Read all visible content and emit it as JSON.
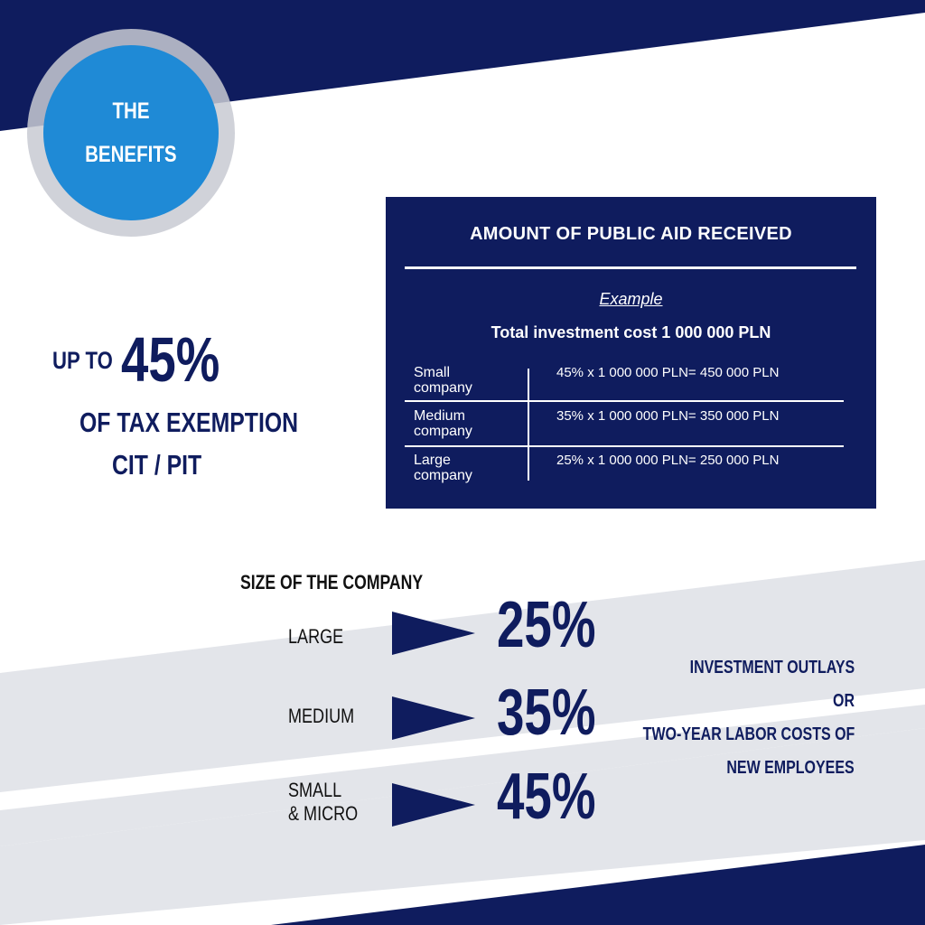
{
  "badge": {
    "line1": "THE",
    "line2": "BENEFITS"
  },
  "headline": {
    "prefix": "UP TO",
    "value": "45%",
    "line2": "OF TAX EXEMPTION",
    "line3": "CIT / PIT"
  },
  "aid_panel": {
    "title": "AMOUNT OF PUBLIC AID RECEIVED",
    "example_label": "Example",
    "total": "Total investment cost 1 000 000 PLN",
    "rows": [
      {
        "label1": "Small",
        "label2": "company",
        "calc": "45% x 1 000 000 PLN= 450 000 PLN"
      },
      {
        "label1": "Medium",
        "label2": "company",
        "calc": "35% x 1 000 000 PLN= 350 000 PLN"
      },
      {
        "label1": "Large",
        "label2": "company",
        "calc": "25% x 1 000 000 PLN= 250 000 PLN"
      }
    ]
  },
  "sizes": {
    "title": "SIZE OF THE COMPANY",
    "large": {
      "label": "LARGE",
      "value": "25%"
    },
    "medium": {
      "label": "MEDIUM",
      "value": "35%"
    },
    "small": {
      "label1": "SMALL",
      "label2": "& MICRO",
      "value": "45%"
    }
  },
  "note": {
    "line1": "INVESTMENT OUTLAYS",
    "line2": "OR",
    "line3": "TWO-YEAR LABOR COSTS OF",
    "line4": "NEW EMPLOYEES"
  },
  "colors": {
    "navy": "#0f1c5e",
    "blue": "#1f8ad6",
    "gray_band": "#e3e5ea"
  }
}
